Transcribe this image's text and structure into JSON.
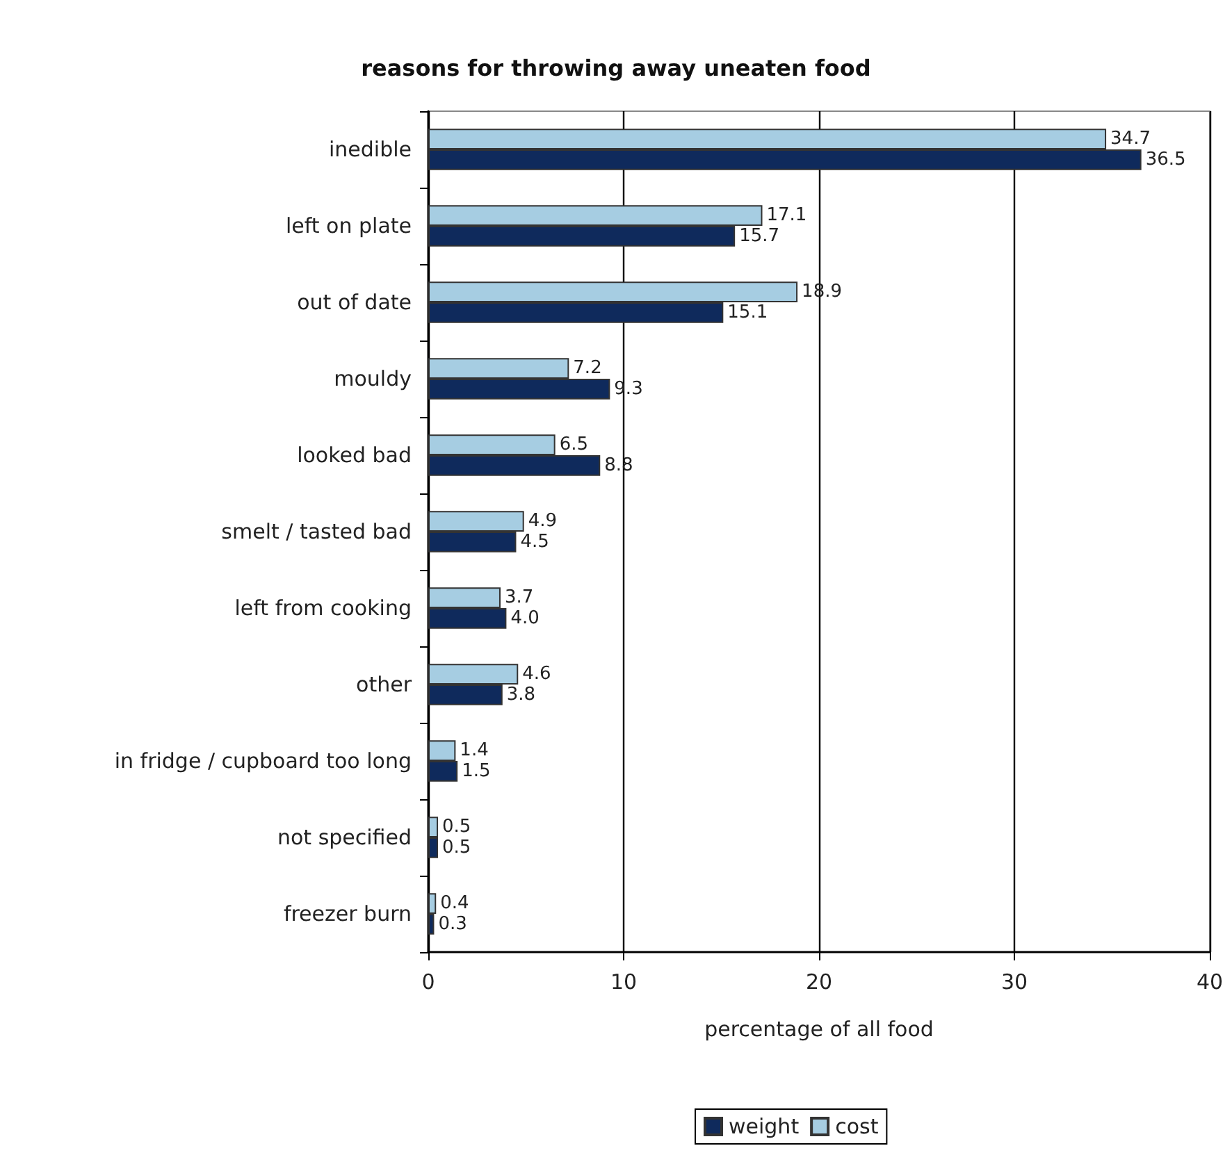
{
  "chart_data": {
    "type": "bar",
    "orientation": "horizontal",
    "title": "reasons for throwing away uneaten food",
    "xlabel": "percentage of all food",
    "categories": [
      "inedible",
      "left on plate",
      "out of date",
      "mouldy",
      "looked bad",
      "smelt / tasted bad",
      "left from cooking",
      "other",
      "in fridge / cupboard too long",
      "not specified",
      "freezer burn"
    ],
    "series": [
      {
        "name": "weight",
        "color": "#0f2a5c",
        "values": [
          36.5,
          15.7,
          15.1,
          9.3,
          8.8,
          4.5,
          4.0,
          3.8,
          1.5,
          0.5,
          0.3
        ],
        "value_labels": [
          "36.5",
          "15.7",
          "15.1",
          "9.3",
          "8.8",
          "4.5",
          "4.0",
          "3.8",
          "1.5",
          "0.5",
          "0.3"
        ]
      },
      {
        "name": "cost",
        "color": "#a6cde2",
        "values": [
          34.7,
          17.1,
          18.9,
          7.2,
          6.5,
          4.9,
          3.7,
          4.6,
          1.4,
          0.5,
          0.4
        ],
        "value_labels": [
          "34.7",
          "17.1",
          "18.9",
          "7.2",
          "6.5",
          "4.9",
          "3.7",
          "4.6",
          "1.4",
          "0.5",
          "0.4"
        ]
      }
    ],
    "xlim": [
      0,
      40
    ],
    "xticks": [
      0,
      10,
      20,
      30,
      40
    ],
    "grid": "x",
    "legend": "bottom"
  }
}
